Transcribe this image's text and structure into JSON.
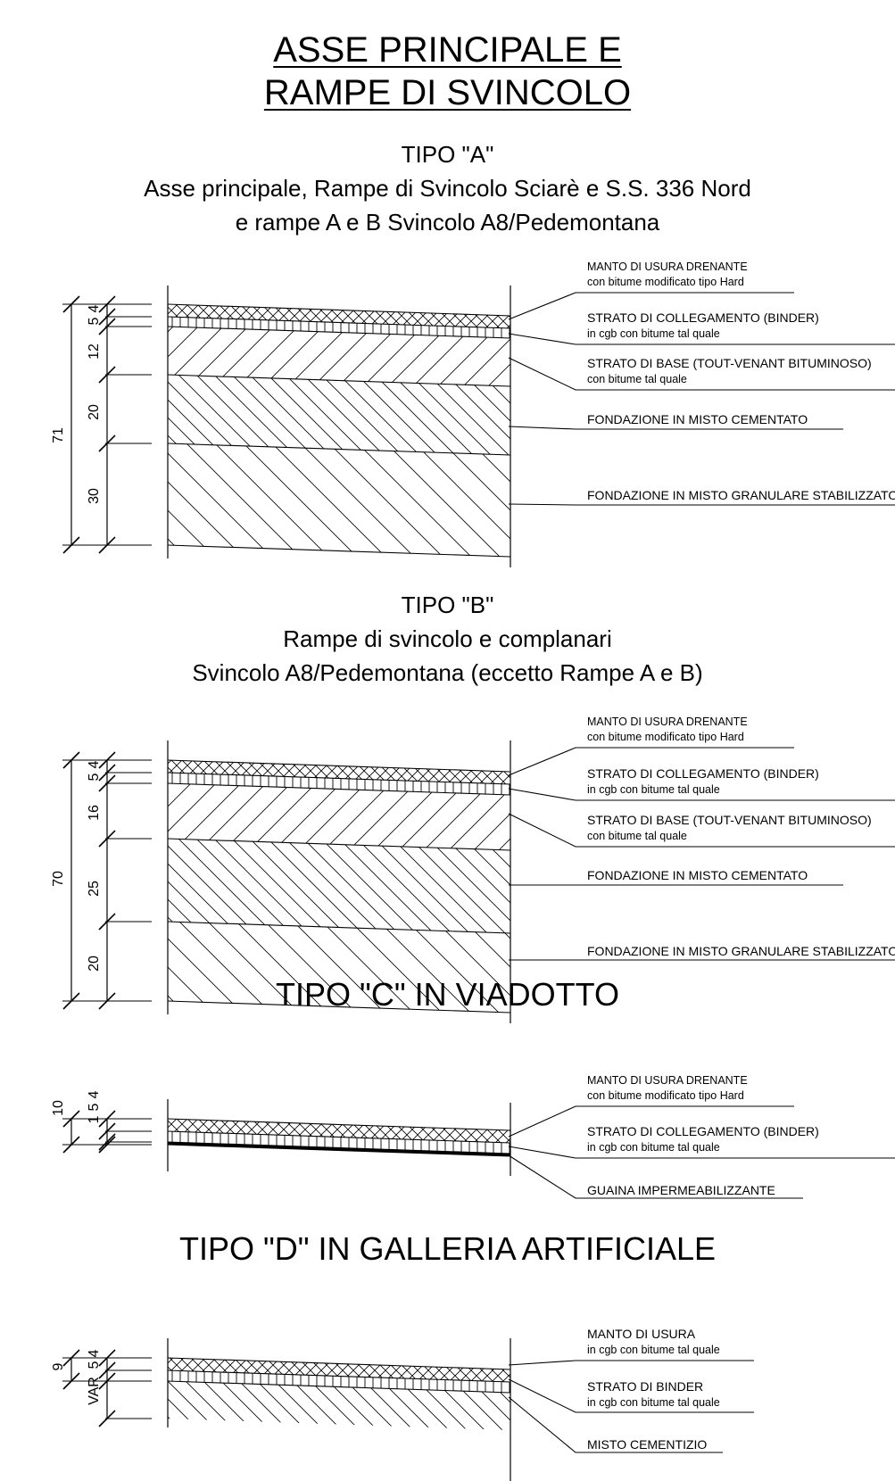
{
  "title": {
    "line1": "ASSE PRINCIPALE E",
    "line2": "RAMPE DI SVINCOLO"
  },
  "sections": [
    {
      "heading": "TIPO \"A\"",
      "desc1": "Asse principale, Rampe di Svincolo Sciarè e S.S. 336 Nord",
      "desc2": "e rampe A e B Svincolo A8/Pedemontana",
      "total": "71",
      "dims": [
        "5",
        "4",
        "12",
        "20",
        "30"
      ],
      "layers": [
        {
          "name": "MANTO DI USURA DRENANTE",
          "detail": "con bitume modificato tipo Hard"
        },
        {
          "name": "STRATO DI COLLEGAMENTO (BINDER)",
          "detail": "in cgb con bitume tal quale"
        },
        {
          "name": "STRATO DI BASE (TOUT-VENANT BITUMINOSO)",
          "detail": "con bitume tal quale"
        },
        {
          "name": "FONDAZIONE IN MISTO CEMENTATO",
          "detail": ""
        },
        {
          "name": "FONDAZIONE IN MISTO GRANULARE STABILIZZATO",
          "detail": ""
        }
      ]
    },
    {
      "heading": "TIPO \"B\"",
      "desc1": "Rampe di svincolo e complanari",
      "desc2": "Svincolo A8/Pedemontana (eccetto Rampe A e B)",
      "total": "70",
      "dims": [
        "5",
        "4",
        "16",
        "25",
        "20"
      ],
      "layers": [
        {
          "name": "MANTO DI USURA DRENANTE",
          "detail": "con bitume modificato tipo Hard"
        },
        {
          "name": "STRATO DI COLLEGAMENTO (BINDER)",
          "detail": "in cgb con bitume tal quale"
        },
        {
          "name": "STRATO DI BASE (TOUT-VENANT BITUMINOSO)",
          "detail": "con bitume tal quale"
        },
        {
          "name": "FONDAZIONE IN MISTO CEMENTATO",
          "detail": ""
        },
        {
          "name": "FONDAZIONE IN MISTO GRANULARE STABILIZZATO",
          "detail": ""
        }
      ]
    },
    {
      "heading": "TIPO \"C\" IN VIADOTTO",
      "total": "10",
      "dims": [
        "5",
        "4",
        "1"
      ],
      "layers": [
        {
          "name": "MANTO DI USURA DRENANTE",
          "detail": "con bitume modificato tipo Hard"
        },
        {
          "name": "STRATO DI COLLEGAMENTO (BINDER)",
          "detail": "in cgb con bitume tal quale"
        },
        {
          "name": "GUAINA IMPERMEABILIZZANTE",
          "detail": ""
        }
      ]
    },
    {
      "heading": "TIPO \"D\" IN GALLERIA ARTIFICIALE",
      "total": "9",
      "dims": [
        "5",
        "4",
        "VAR"
      ],
      "layers": [
        {
          "name": "MANTO DI USURA",
          "detail": "in cgb con bitume tal quale"
        },
        {
          "name": "STRATO DI BINDER",
          "detail": "in cgb con bitume tal quale"
        },
        {
          "name": "MISTO CEMENTIZIO",
          "detail": ""
        }
      ]
    }
  ]
}
